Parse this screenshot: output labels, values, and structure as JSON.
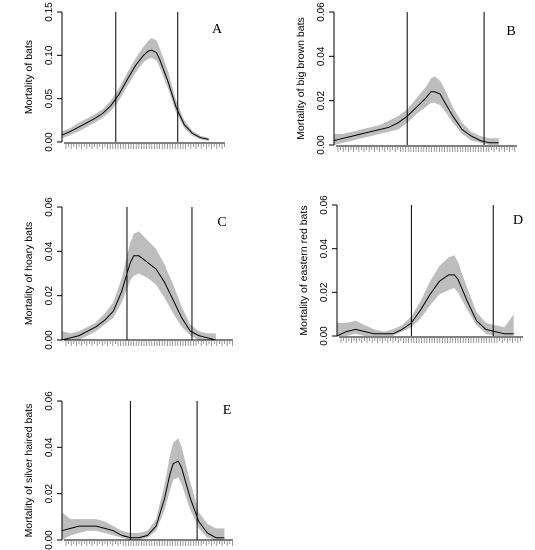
{
  "chart_data": [
    {
      "type": "area",
      "panel": "A",
      "ylabel": "Mortality of bats",
      "ylim": [
        0,
        0.15
      ],
      "yticks": [
        "0.00",
        "0.05",
        "0.10",
        "0.15"
      ],
      "xlim": [
        0,
        100
      ],
      "vlines": [
        33,
        71
      ],
      "series": [
        {
          "x": [
            0,
            5,
            10,
            15,
            20,
            25,
            30,
            35,
            40,
            45,
            50,
            53,
            55,
            58,
            60,
            65,
            70,
            75,
            80,
            85,
            90
          ],
          "values": [
            0.008,
            0.012,
            0.017,
            0.022,
            0.027,
            0.033,
            0.042,
            0.055,
            0.072,
            0.088,
            0.1,
            0.105,
            0.106,
            0.103,
            0.095,
            0.07,
            0.04,
            0.02,
            0.01,
            0.005,
            0.003
          ],
          "lower": [
            0.004,
            0.008,
            0.012,
            0.017,
            0.022,
            0.028,
            0.036,
            0.048,
            0.064,
            0.08,
            0.092,
            0.096,
            0.097,
            0.094,
            0.086,
            0.062,
            0.034,
            0.016,
            0.007,
            0.003,
            0.001
          ],
          "upper": [
            0.012,
            0.016,
            0.022,
            0.027,
            0.032,
            0.038,
            0.048,
            0.062,
            0.08,
            0.096,
            0.11,
            0.117,
            0.12,
            0.117,
            0.108,
            0.082,
            0.048,
            0.025,
            0.013,
            0.007,
            0.005
          ]
        }
      ]
    },
    {
      "type": "area",
      "panel": "B",
      "ylabel": "Mortality of big brown bats",
      "ylim": [
        0,
        0.06
      ],
      "yticks": [
        "0.00",
        "0.02",
        "0.04",
        "0.06"
      ],
      "xlim": [
        0,
        100
      ],
      "vlines": [
        40,
        82
      ],
      "series": [
        {
          "x": [
            0,
            5,
            10,
            15,
            20,
            25,
            30,
            35,
            40,
            45,
            50,
            53,
            55,
            58,
            60,
            65,
            70,
            75,
            80,
            85,
            90
          ],
          "values": [
            0.002,
            0.003,
            0.004,
            0.005,
            0.006,
            0.007,
            0.008,
            0.01,
            0.013,
            0.017,
            0.021,
            0.024,
            0.024,
            0.023,
            0.02,
            0.013,
            0.007,
            0.004,
            0.002,
            0.001,
            0.001
          ],
          "lower": [
            0.0,
            0.001,
            0.002,
            0.003,
            0.004,
            0.005,
            0.006,
            0.007,
            0.01,
            0.014,
            0.017,
            0.019,
            0.019,
            0.018,
            0.016,
            0.01,
            0.005,
            0.002,
            0.001,
            0.0,
            0.0
          ],
          "upper": [
            0.005,
            0.005,
            0.006,
            0.007,
            0.008,
            0.009,
            0.011,
            0.013,
            0.016,
            0.021,
            0.026,
            0.03,
            0.031,
            0.029,
            0.026,
            0.017,
            0.01,
            0.006,
            0.004,
            0.003,
            0.003
          ]
        }
      ]
    },
    {
      "type": "area",
      "panel": "C",
      "ylabel": "Mortality of hoary bats",
      "ylim": [
        0,
        0.06
      ],
      "yticks": [
        "0.00",
        "0.02",
        "0.04",
        "0.06"
      ],
      "xlim": [
        0,
        100
      ],
      "vlines": [
        38,
        76
      ],
      "series": [
        {
          "x": [
            0,
            5,
            10,
            15,
            20,
            25,
            30,
            35,
            38,
            40,
            42,
            45,
            50,
            55,
            60,
            65,
            70,
            75,
            80,
            85,
            90
          ],
          "values": [
            0.0,
            0.001,
            0.002,
            0.004,
            0.006,
            0.009,
            0.013,
            0.022,
            0.03,
            0.035,
            0.038,
            0.038,
            0.035,
            0.032,
            0.026,
            0.018,
            0.01,
            0.004,
            0.002,
            0.001,
            0.0
          ],
          "lower": [
            0.0,
            0.0,
            0.0,
            0.002,
            0.004,
            0.007,
            0.01,
            0.017,
            0.023,
            0.027,
            0.029,
            0.03,
            0.028,
            0.025,
            0.019,
            0.012,
            0.006,
            0.002,
            0.0,
            0.0,
            0.0
          ],
          "upper": [
            0.004,
            0.003,
            0.004,
            0.006,
            0.008,
            0.012,
            0.017,
            0.028,
            0.038,
            0.044,
            0.048,
            0.049,
            0.045,
            0.041,
            0.034,
            0.025,
            0.015,
            0.007,
            0.004,
            0.003,
            0.003
          ]
        }
      ]
    },
    {
      "type": "area",
      "panel": "D",
      "ylabel": "Mortality of eastern red bats",
      "ylim": [
        0,
        0.06
      ],
      "yticks": [
        "0.00",
        "0.02",
        "0.04",
        "0.06"
      ],
      "xlim": [
        0,
        100
      ],
      "vlines": [
        40,
        84
      ],
      "series": [
        {
          "x": [
            0,
            5,
            10,
            15,
            20,
            25,
            30,
            35,
            40,
            45,
            50,
            55,
            60,
            63,
            65,
            70,
            75,
            80,
            85,
            90,
            95
          ],
          "values": [
            0.0,
            0.002,
            0.003,
            0.002,
            0.001,
            0.001,
            0.001,
            0.003,
            0.006,
            0.012,
            0.019,
            0.025,
            0.028,
            0.028,
            0.026,
            0.016,
            0.007,
            0.003,
            0.002,
            0.001,
            0.001
          ],
          "lower": [
            0.0,
            0.0,
            0.001,
            0.0,
            0.0,
            0.0,
            0.0,
            0.002,
            0.004,
            0.008,
            0.014,
            0.019,
            0.021,
            0.022,
            0.02,
            0.012,
            0.005,
            0.001,
            0.0,
            0.0,
            0.0
          ],
          "upper": [
            0.006,
            0.006,
            0.007,
            0.005,
            0.003,
            0.002,
            0.003,
            0.005,
            0.009,
            0.016,
            0.025,
            0.032,
            0.036,
            0.037,
            0.034,
            0.022,
            0.011,
            0.006,
            0.005,
            0.004,
            0.01
          ]
        }
      ]
    },
    {
      "type": "area",
      "panel": "E",
      "ylabel": "Mortality of silver haired bats",
      "ylim": [
        0,
        0.06
      ],
      "yticks": [
        "0.00",
        "0.02",
        "0.04",
        "0.06"
      ],
      "xlim": [
        0,
        100
      ],
      "vlines": [
        40,
        79
      ],
      "series": [
        {
          "x": [
            0,
            5,
            10,
            15,
            20,
            25,
            30,
            35,
            40,
            45,
            50,
            55,
            60,
            63,
            65,
            68,
            70,
            75,
            80,
            85,
            90,
            95
          ],
          "values": [
            0.004,
            0.005,
            0.006,
            0.006,
            0.006,
            0.005,
            0.004,
            0.002,
            0.001,
            0.001,
            0.002,
            0.006,
            0.018,
            0.028,
            0.033,
            0.034,
            0.031,
            0.018,
            0.008,
            0.003,
            0.001,
            0.001
          ],
          "lower": [
            0.0,
            0.002,
            0.003,
            0.004,
            0.004,
            0.003,
            0.002,
            0.001,
            0.0,
            0.0,
            0.001,
            0.004,
            0.013,
            0.021,
            0.026,
            0.027,
            0.024,
            0.013,
            0.005,
            0.001,
            0.0,
            0.0
          ],
          "upper": [
            0.012,
            0.009,
            0.009,
            0.009,
            0.009,
            0.008,
            0.006,
            0.004,
            0.003,
            0.003,
            0.004,
            0.009,
            0.024,
            0.036,
            0.042,
            0.044,
            0.04,
            0.025,
            0.012,
            0.007,
            0.005,
            0.005
          ]
        }
      ]
    }
  ],
  "colors": {
    "band": "#bdbdbd",
    "line": "#000000",
    "axis": "#000000",
    "rug": "#808080"
  }
}
